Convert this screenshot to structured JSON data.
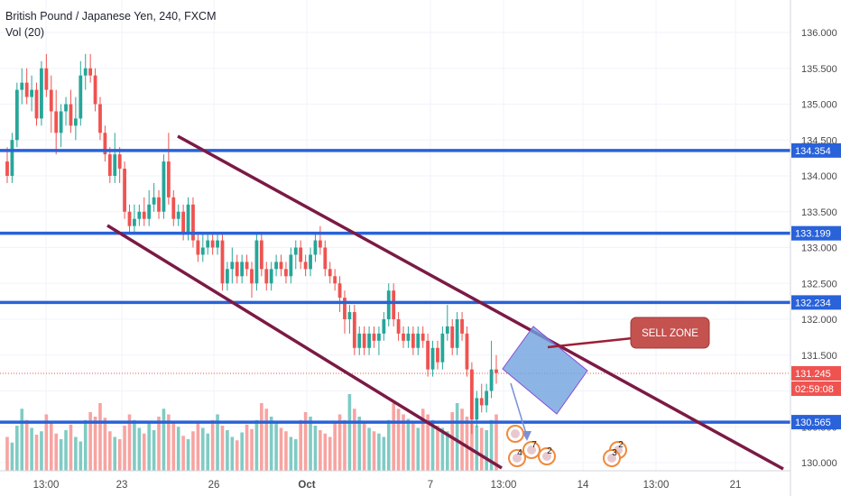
{
  "header": {
    "title": "British Pound / Japanese Yen, 240, FXCM",
    "vol_label": "Vol (20)"
  },
  "colors": {
    "up": "#26a69a",
    "down": "#ef5350",
    "vol_up": "#80cbc4",
    "vol_down": "#f7a4a1",
    "channel": "#7b1a45",
    "hline": "#2962d9",
    "sell_zone_fill": "#6fa2e0",
    "sell_zone_stroke": "#8a4fd4",
    "annot_fill": "#c4524f",
    "annot_line": "#9c1f35",
    "price_tag": "#ef5350",
    "grid": "#f0f3fa"
  },
  "chart_data": {
    "type": "candlestick",
    "symbol": "British Pound / Japanese Yen",
    "timeframe": "240",
    "source": "FXCM",
    "ylim": [
      129.9,
      136.3
    ],
    "y_ticks": [
      "130.000",
      "130.500",
      "131.000",
      "131.500",
      "132.000",
      "132.500",
      "133.000",
      "133.500",
      "134.000",
      "134.500",
      "135.000",
      "135.500",
      "136.000"
    ],
    "x_ticks": [
      "13:00",
      "23",
      "26",
      "Oct",
      "7",
      "13:00",
      "14",
      "13:00",
      "21"
    ],
    "horizontal_levels": [
      134.354,
      133.199,
      132.234,
      130.565
    ],
    "last_price": "131.245",
    "countdown": "02:59:08",
    "annotations": {
      "sell_zone_label": "SELL ZONE"
    },
    "events": [
      {
        "label": "4"
      },
      {
        "label": "7"
      },
      {
        "label": "2"
      },
      {
        "label": "2"
      },
      {
        "label": "3"
      }
    ],
    "candles": [
      [
        134.2,
        134.4,
        133.9,
        134.0
      ],
      [
        134.0,
        134.6,
        133.9,
        134.5
      ],
      [
        134.5,
        135.3,
        134.4,
        135.2
      ],
      [
        135.2,
        135.5,
        135.0,
        135.3
      ],
      [
        135.3,
        135.5,
        135.0,
        135.1
      ],
      [
        135.1,
        135.4,
        134.9,
        135.2
      ],
      [
        135.2,
        135.3,
        134.7,
        134.8
      ],
      [
        134.8,
        135.6,
        134.7,
        135.5
      ],
      [
        135.5,
        135.7,
        135.1,
        135.2
      ],
      [
        135.2,
        135.4,
        134.6,
        134.9
      ],
      [
        134.9,
        135.2,
        134.3,
        134.6
      ],
      [
        134.6,
        135.0,
        134.4,
        134.9
      ],
      [
        134.9,
        135.1,
        134.7,
        135.0
      ],
      [
        135.0,
        135.2,
        134.6,
        134.7
      ],
      [
        134.7,
        135.1,
        134.5,
        134.8
      ],
      [
        134.8,
        135.6,
        134.7,
        135.4
      ],
      [
        135.4,
        135.7,
        135.2,
        135.5
      ],
      [
        135.5,
        135.7,
        135.3,
        135.4
      ],
      [
        135.4,
        135.5,
        134.9,
        135.0
      ],
      [
        135.0,
        135.1,
        134.5,
        134.6
      ],
      [
        134.6,
        134.7,
        134.2,
        134.3
      ],
      [
        134.3,
        134.4,
        133.9,
        134.0
      ],
      [
        134.0,
        134.6,
        133.9,
        134.3
      ],
      [
        134.3,
        134.4,
        133.9,
        134.1
      ],
      [
        134.1,
        134.2,
        133.4,
        133.5
      ],
      [
        133.5,
        133.6,
        133.2,
        133.3
      ],
      [
        133.3,
        133.6,
        133.2,
        133.4
      ],
      [
        133.4,
        133.6,
        133.3,
        133.5
      ],
      [
        133.5,
        133.7,
        133.3,
        133.4
      ],
      [
        133.4,
        133.8,
        133.3,
        133.6
      ],
      [
        133.6,
        133.9,
        133.5,
        133.7
      ],
      [
        133.7,
        133.8,
        133.4,
        133.5
      ],
      [
        133.5,
        134.3,
        133.4,
        134.2
      ],
      [
        134.2,
        134.6,
        133.6,
        133.7
      ],
      [
        133.7,
        133.8,
        133.3,
        133.4
      ],
      [
        133.4,
        133.6,
        133.3,
        133.5
      ],
      [
        133.5,
        133.6,
        133.1,
        133.2
      ],
      [
        133.2,
        133.7,
        133.1,
        133.6
      ],
      [
        133.6,
        133.7,
        133.0,
        133.1
      ],
      [
        133.1,
        133.2,
        132.8,
        132.9
      ],
      [
        132.9,
        133.2,
        132.8,
        133.0
      ],
      [
        133.0,
        133.2,
        132.9,
        133.1
      ],
      [
        133.1,
        133.2,
        132.9,
        133.0
      ],
      [
        133.0,
        133.2,
        132.9,
        133.1
      ],
      [
        133.1,
        133.2,
        132.4,
        132.5
      ],
      [
        132.5,
        132.8,
        132.4,
        132.7
      ],
      [
        132.7,
        133.0,
        132.5,
        132.8
      ],
      [
        132.8,
        132.9,
        132.5,
        132.6
      ],
      [
        132.6,
        132.9,
        132.5,
        132.8
      ],
      [
        132.8,
        132.9,
        132.6,
        132.7
      ],
      [
        132.7,
        132.8,
        132.3,
        132.5
      ],
      [
        132.5,
        133.2,
        132.4,
        133.1
      ],
      [
        133.1,
        133.2,
        132.6,
        132.7
      ],
      [
        132.7,
        132.8,
        132.4,
        132.5
      ],
      [
        132.5,
        132.8,
        132.4,
        132.7
      ],
      [
        132.7,
        132.9,
        132.6,
        132.8
      ],
      [
        132.8,
        132.9,
        132.6,
        132.7
      ],
      [
        132.7,
        132.8,
        132.5,
        132.6
      ],
      [
        132.6,
        133.0,
        132.5,
        132.9
      ],
      [
        132.9,
        133.1,
        132.7,
        133.0
      ],
      [
        133.0,
        133.1,
        132.7,
        132.8
      ],
      [
        132.8,
        132.9,
        132.6,
        132.7
      ],
      [
        132.7,
        133.0,
        132.6,
        132.9
      ],
      [
        132.9,
        133.2,
        132.8,
        133.1
      ],
      [
        133.1,
        133.3,
        132.9,
        133.0
      ],
      [
        133.0,
        133.1,
        132.6,
        132.7
      ],
      [
        132.7,
        132.8,
        132.5,
        132.6
      ],
      [
        132.6,
        132.7,
        132.4,
        132.5
      ],
      [
        132.5,
        132.6,
        132.1,
        132.3
      ],
      [
        132.3,
        132.4,
        131.8,
        132.0
      ],
      [
        132.0,
        132.2,
        131.8,
        132.1
      ],
      [
        132.1,
        132.2,
        131.5,
        131.6
      ],
      [
        131.6,
        131.9,
        131.5,
        131.8
      ],
      [
        131.8,
        131.9,
        131.5,
        131.6
      ],
      [
        131.6,
        131.9,
        131.5,
        131.8
      ],
      [
        131.8,
        131.9,
        131.6,
        131.7
      ],
      [
        131.7,
        131.9,
        131.5,
        131.8
      ],
      [
        131.8,
        132.1,
        131.7,
        132.0
      ],
      [
        132.0,
        132.5,
        131.9,
        132.4
      ],
      [
        132.4,
        132.5,
        131.9,
        132.0
      ],
      [
        132.0,
        132.1,
        131.7,
        131.8
      ],
      [
        131.8,
        131.9,
        131.6,
        131.7
      ],
      [
        131.7,
        131.9,
        131.6,
        131.8
      ],
      [
        131.8,
        131.9,
        131.5,
        131.6
      ],
      [
        131.6,
        131.9,
        131.5,
        131.8
      ],
      [
        131.8,
        131.9,
        131.6,
        131.7
      ],
      [
        131.7,
        131.8,
        131.2,
        131.3
      ],
      [
        131.3,
        131.7,
        131.2,
        131.6
      ],
      [
        131.6,
        131.7,
        131.3,
        131.4
      ],
      [
        131.4,
        131.9,
        131.3,
        131.8
      ],
      [
        131.8,
        132.2,
        131.7,
        131.9
      ],
      [
        131.9,
        132.0,
        131.5,
        131.6
      ],
      [
        131.6,
        132.1,
        131.5,
        132.0
      ],
      [
        132.0,
        132.1,
        131.7,
        131.8
      ],
      [
        131.8,
        131.9,
        131.2,
        131.3
      ],
      [
        131.3,
        131.4,
        130.4,
        130.6
      ],
      [
        130.6,
        131.0,
        130.5,
        130.9
      ],
      [
        130.9,
        131.1,
        130.7,
        130.8
      ],
      [
        130.8,
        131.1,
        130.7,
        131.0
      ],
      [
        131.0,
        131.7,
        130.9,
        131.3
      ],
      [
        131.3,
        131.5,
        131.1,
        131.25
      ]
    ],
    "volumes": [
      30,
      25,
      40,
      55,
      45,
      38,
      32,
      35,
      50,
      42,
      33,
      28,
      36,
      41,
      30,
      26,
      45,
      52,
      48,
      60,
      47,
      35,
      30,
      28,
      40,
      50,
      45,
      38,
      33,
      42,
      36,
      48,
      55,
      50,
      44,
      39,
      31,
      28,
      35,
      42,
      38,
      33,
      45,
      50,
      40,
      36,
      30,
      27,
      34,
      41,
      37,
      45,
      60,
      55,
      48,
      43,
      38,
      35,
      30,
      28,
      45,
      52,
      48,
      40,
      36,
      33,
      30,
      42,
      50,
      45,
      68,
      55,
      48,
      42,
      38,
      35,
      33,
      30,
      45,
      60,
      55,
      50,
      46,
      42,
      38,
      55,
      50,
      45,
      40,
      38,
      35,
      52,
      60,
      55,
      48,
      44,
      40,
      38,
      36,
      45,
      50
    ]
  }
}
